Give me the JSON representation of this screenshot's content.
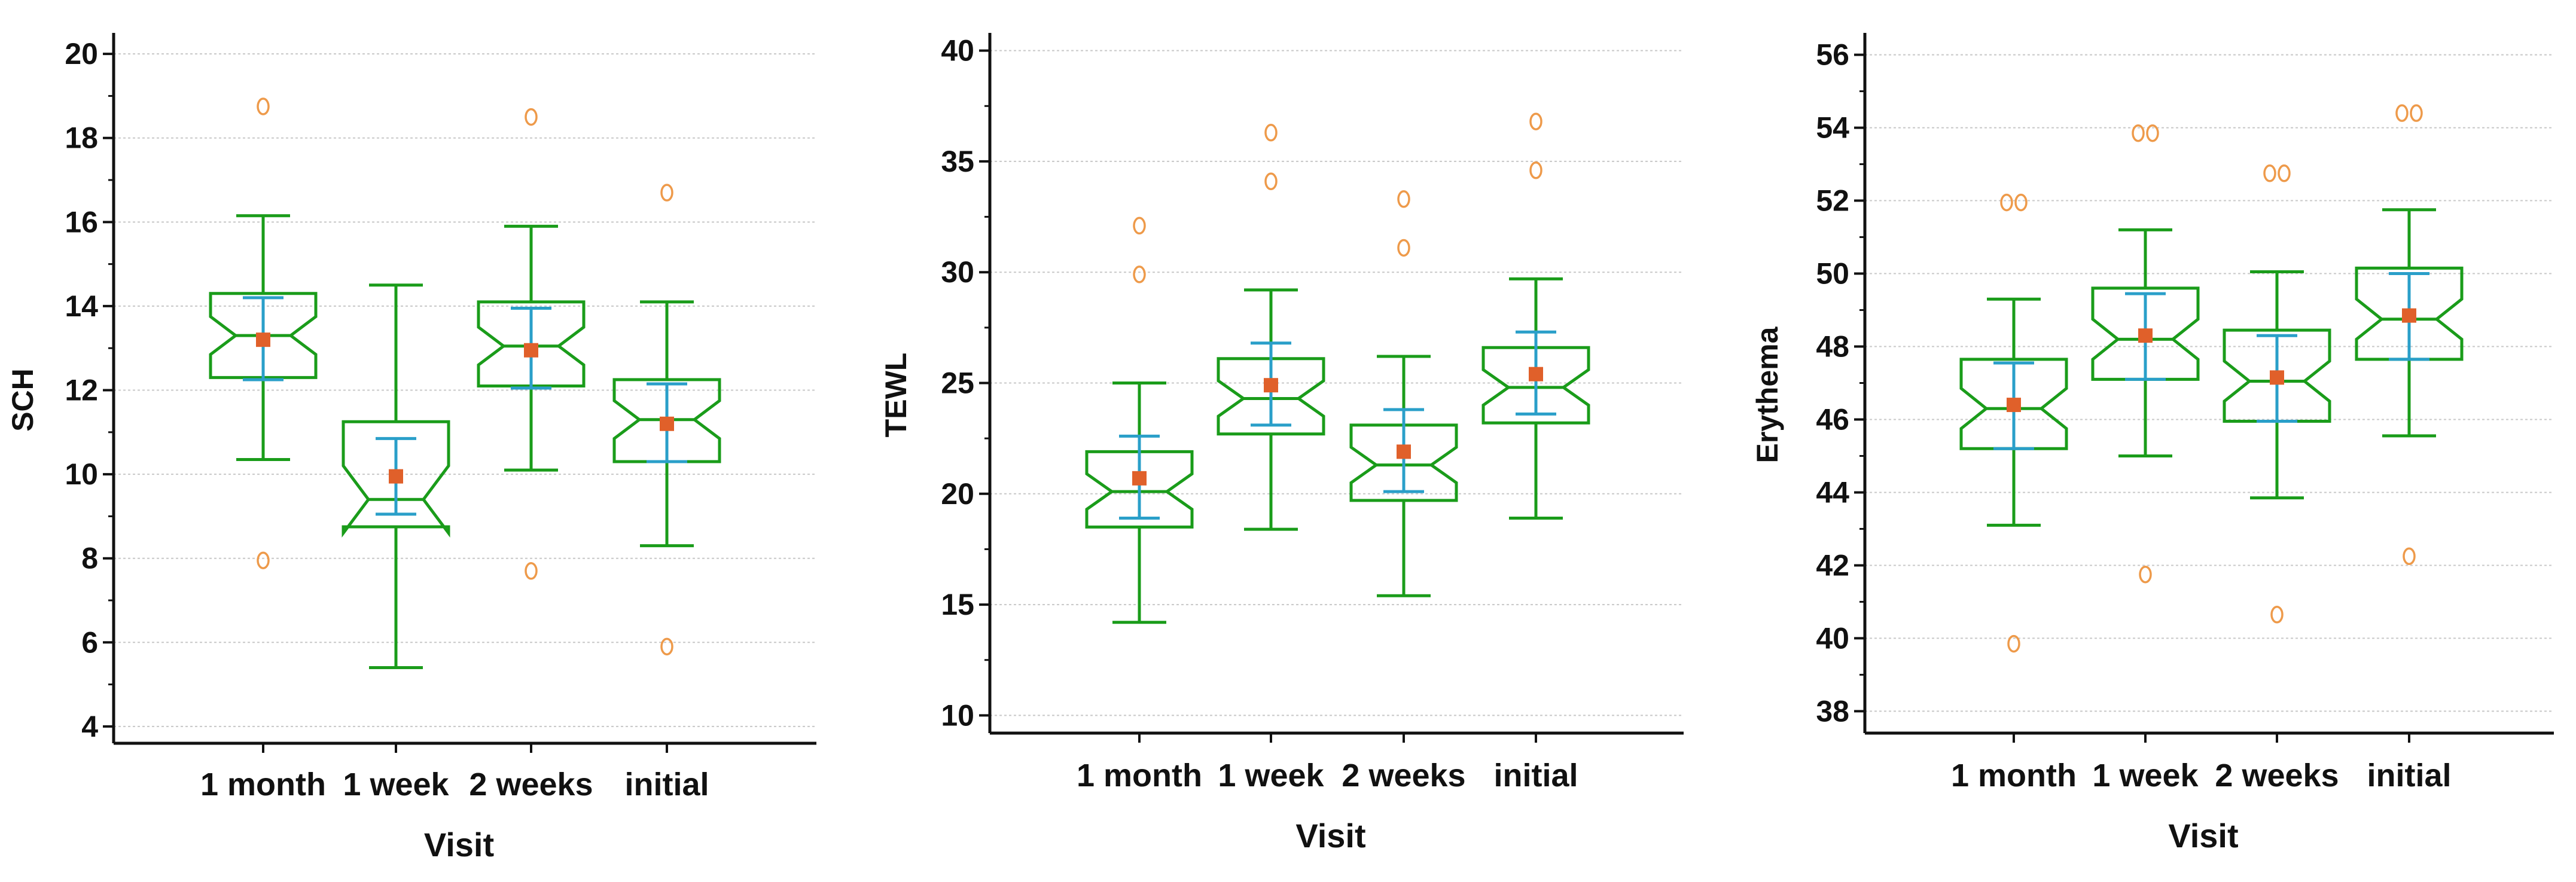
{
  "chart_data": [
    {
      "type": "box",
      "xlabel": "Visit",
      "ylabel": "SCH",
      "categories": [
        "1 month",
        "1 week",
        "2 weeks",
        "initial"
      ],
      "ylim": [
        3.6,
        20.5
      ],
      "yticks": [
        4,
        6,
        8,
        10,
        12,
        14,
        16,
        18,
        20
      ],
      "boxes": [
        {
          "q1": 12.3,
          "median": 13.3,
          "q3": 14.3,
          "whisker_low": 10.35,
          "whisker_high": 16.15,
          "mean": 13.2,
          "ci_low": 12.25,
          "ci_high": 14.2,
          "notch_low": 12.85,
          "notch_high": 13.75,
          "outliers": [
            18.75,
            7.95
          ]
        },
        {
          "q1": 8.75,
          "median": 9.4,
          "q3": 11.25,
          "whisker_low": 5.4,
          "whisker_high": 14.5,
          "mean": 9.95,
          "ci_low": 9.05,
          "ci_high": 10.85,
          "notch_low": 8.6,
          "notch_high": 10.2,
          "outliers": []
        },
        {
          "q1": 12.1,
          "median": 13.05,
          "q3": 14.1,
          "whisker_low": 10.1,
          "whisker_high": 15.9,
          "mean": 12.95,
          "ci_low": 12.05,
          "ci_high": 13.95,
          "notch_low": 12.6,
          "notch_high": 13.5,
          "outliers": [
            18.5,
            7.7
          ]
        },
        {
          "q1": 10.3,
          "median": 11.3,
          "q3": 12.25,
          "whisker_low": 8.3,
          "whisker_high": 14.1,
          "mean": 11.2,
          "ci_low": 10.3,
          "ci_high": 12.15,
          "notch_low": 10.85,
          "notch_high": 11.75,
          "outliers": [
            16.7,
            5.9
          ]
        }
      ]
    },
    {
      "type": "box",
      "xlabel": "Visit",
      "ylabel": "TEWL",
      "categories": [
        "1 month",
        "1 week",
        "2 weeks",
        "initial"
      ],
      "ylim": [
        9.2,
        40.8
      ],
      "yticks": [
        10,
        15,
        20,
        25,
        30,
        35,
        40
      ],
      "boxes": [
        {
          "q1": 18.5,
          "median": 20.1,
          "q3": 21.9,
          "whisker_low": 14.2,
          "whisker_high": 25.0,
          "mean": 20.7,
          "ci_low": 18.9,
          "ci_high": 22.6,
          "notch_low": 19.3,
          "notch_high": 20.9,
          "outliers": [
            32.1,
            29.9
          ]
        },
        {
          "q1": 22.7,
          "median": 24.3,
          "q3": 26.1,
          "whisker_low": 18.4,
          "whisker_high": 29.2,
          "mean": 24.9,
          "ci_low": 23.1,
          "ci_high": 26.8,
          "notch_low": 23.5,
          "notch_high": 25.1,
          "outliers": [
            36.3,
            34.1
          ]
        },
        {
          "q1": 19.7,
          "median": 21.3,
          "q3": 23.1,
          "whisker_low": 15.4,
          "whisker_high": 26.2,
          "mean": 21.9,
          "ci_low": 20.1,
          "ci_high": 23.8,
          "notch_low": 20.5,
          "notch_high": 22.1,
          "outliers": [
            33.3,
            31.1
          ]
        },
        {
          "q1": 23.2,
          "median": 24.8,
          "q3": 26.6,
          "whisker_low": 18.9,
          "whisker_high": 29.7,
          "mean": 25.4,
          "ci_low": 23.6,
          "ci_high": 27.3,
          "notch_low": 24.0,
          "notch_high": 25.6,
          "outliers": [
            36.8,
            34.6
          ]
        }
      ]
    },
    {
      "type": "box",
      "xlabel": "Visit",
      "ylabel": "Erythema",
      "categories": [
        "1 month",
        "1 week",
        "2 weeks",
        "initial"
      ],
      "ylim": [
        37.4,
        56.6
      ],
      "yticks": [
        38,
        40,
        42,
        44,
        46,
        48,
        50,
        52,
        54,
        56
      ],
      "boxes": [
        {
          "q1": 45.2,
          "median": 46.3,
          "q3": 47.65,
          "whisker_low": 43.1,
          "whisker_high": 49.3,
          "mean": 46.4,
          "ci_low": 45.2,
          "ci_high": 47.55,
          "notch_low": 45.75,
          "notch_high": 46.85,
          "outliers": [
            51.95,
            51.95,
            39.85
          ]
        },
        {
          "q1": 47.1,
          "median": 48.2,
          "q3": 49.6,
          "whisker_low": 45.0,
          "whisker_high": 51.2,
          "mean": 48.3,
          "ci_low": 47.1,
          "ci_high": 49.45,
          "notch_low": 47.65,
          "notch_high": 48.75,
          "outliers": [
            53.85,
            53.85,
            41.75
          ]
        },
        {
          "q1": 45.95,
          "median": 47.05,
          "q3": 48.45,
          "whisker_low": 43.85,
          "whisker_high": 50.05,
          "mean": 47.15,
          "ci_low": 45.95,
          "ci_high": 48.3,
          "notch_low": 46.5,
          "notch_high": 47.6,
          "outliers": [
            52.75,
            52.75,
            40.65
          ]
        },
        {
          "q1": 47.65,
          "median": 48.75,
          "q3": 50.15,
          "whisker_low": 45.55,
          "whisker_high": 51.75,
          "mean": 48.85,
          "ci_low": 47.65,
          "ci_high": 50.0,
          "notch_low": 48.2,
          "notch_high": 49.3,
          "outliers": [
            54.4,
            54.4,
            42.25
          ]
        }
      ]
    }
  ],
  "colors": {
    "box": "#1a9c1a",
    "ci": "#2a9fc9",
    "mean": "#e0602a",
    "outlier": "#ee9a4a",
    "grid": "#c8c8c8",
    "axis": "#111111"
  }
}
